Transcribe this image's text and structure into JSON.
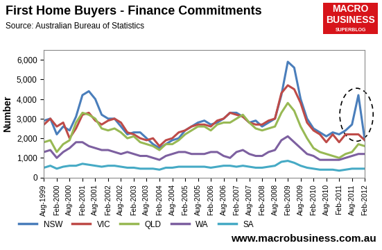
{
  "chart_data": {
    "type": "line",
    "title": "First Home Buyers - Finance Commitments",
    "subtitle": "Source: Australian Bureau of Statistics",
    "y_label": "Number",
    "logo": [
      "MACRO",
      "BUSINESS",
      "SUPERBLOG"
    ],
    "footer": "www.macrobusiness.com.au",
    "categories": [
      "Aug-1999",
      null,
      "Feb-2000",
      null,
      "Aug-2000",
      null,
      "Feb-2001",
      null,
      "Aug-2001",
      null,
      "Feb-2002",
      null,
      "Aug-2002",
      null,
      "Feb-2003",
      null,
      "Aug-2003",
      null,
      "Feb-2004",
      null,
      "Aug-2004",
      null,
      "Feb-2005",
      null,
      "Aug-2005",
      null,
      "Feb-2006",
      null,
      "Aug-2006",
      null,
      "Feb-2007",
      null,
      "Aug-2007",
      null,
      "Feb-2008",
      null,
      "Aug-2008",
      null,
      "Feb-2009",
      null,
      "Aug-2009",
      null,
      "Feb-2010",
      null,
      "Aug-2010",
      null,
      "Feb-2011",
      null,
      "Aug-2011",
      null,
      "Feb-2012"
    ],
    "series": [
      {
        "name": "NSW",
        "color": "#4a7ebb",
        "values": [
          2900,
          3000,
          2200,
          2600,
          2400,
          3100,
          4200,
          4400,
          4000,
          3200,
          3000,
          3000,
          2600,
          2200,
          2300,
          2300,
          2000,
          1700,
          1500,
          1700,
          1900,
          2000,
          2400,
          2600,
          2800,
          2900,
          2700,
          2800,
          3000,
          3300,
          3300,
          3100,
          2800,
          2900,
          2600,
          2800,
          3000,
          4200,
          5900,
          5600,
          4000,
          3000,
          2500,
          2300,
          2100,
          2300,
          2200,
          2400,
          2700,
          4200,
          1900
        ]
      },
      {
        "name": "VIC",
        "color": "#be4b48",
        "values": [
          2700,
          3000,
          2600,
          2800,
          2000,
          2500,
          3200,
          3300,
          2900,
          2700,
          2900,
          3000,
          2800,
          2300,
          2200,
          2000,
          1900,
          2000,
          1600,
          1900,
          2000,
          2300,
          2400,
          2600,
          2700,
          2700,
          2600,
          2900,
          3000,
          3300,
          3200,
          3100,
          2800,
          2700,
          2700,
          2900,
          3000,
          4300,
          4700,
          4500,
          3800,
          2800,
          2400,
          2200,
          1800,
          2200,
          1800,
          2200,
          2200,
          2200,
          1900
        ]
      },
      {
        "name": "QLD",
        "color": "#98b954",
        "values": [
          1800,
          1900,
          1300,
          1700,
          1900,
          2800,
          3300,
          3200,
          3000,
          2500,
          2400,
          2500,
          2300,
          2000,
          2100,
          1800,
          1700,
          1600,
          1400,
          1700,
          1700,
          1900,
          2200,
          2400,
          2600,
          2600,
          2400,
          2700,
          2800,
          2800,
          3000,
          3200,
          2800,
          2500,
          2400,
          2500,
          2600,
          3300,
          3800,
          3400,
          2600,
          2000,
          1500,
          1300,
          1200,
          1100,
          1000,
          1200,
          1300,
          1700,
          1600
        ]
      },
      {
        "name": "WA",
        "color": "#7d60a0",
        "values": [
          1300,
          1400,
          1000,
          1300,
          1500,
          1800,
          1800,
          1600,
          1500,
          1400,
          1400,
          1300,
          1200,
          1300,
          1200,
          1100,
          1100,
          1000,
          900,
          1100,
          1200,
          1300,
          1300,
          1200,
          1200,
          1200,
          1300,
          1300,
          1100,
          1000,
          1300,
          1400,
          1200,
          1100,
          1100,
          1300,
          1400,
          1900,
          2100,
          1800,
          1500,
          1200,
          1100,
          900,
          900,
          900,
          900,
          1000,
          1100,
          1200,
          1200
        ]
      },
      {
        "name": "SA",
        "color": "#46aac5",
        "values": [
          500,
          600,
          450,
          550,
          600,
          600,
          700,
          650,
          600,
          550,
          600,
          600,
          550,
          500,
          500,
          450,
          450,
          450,
          400,
          500,
          500,
          550,
          550,
          550,
          550,
          550,
          500,
          550,
          600,
          600,
          550,
          600,
          550,
          500,
          500,
          550,
          600,
          800,
          850,
          750,
          600,
          500,
          450,
          400,
          400,
          400,
          350,
          400,
          450,
          450,
          450
        ]
      }
    ],
    "ylim": [
      0,
      6500
    ],
    "yticks": [
      0,
      {
        "value": 1000,
        "label": "1,000"
      },
      {
        "value": 2000,
        "label": "2,000"
      },
      {
        "value": 3000,
        "label": "3,000"
      },
      {
        "value": 4000,
        "label": "4,000"
      },
      {
        "value": 5000,
        "label": "5,000"
      },
      {
        "value": 6000,
        "label": "6,000"
      }
    ],
    "grid": false,
    "legend": "bottom"
  }
}
